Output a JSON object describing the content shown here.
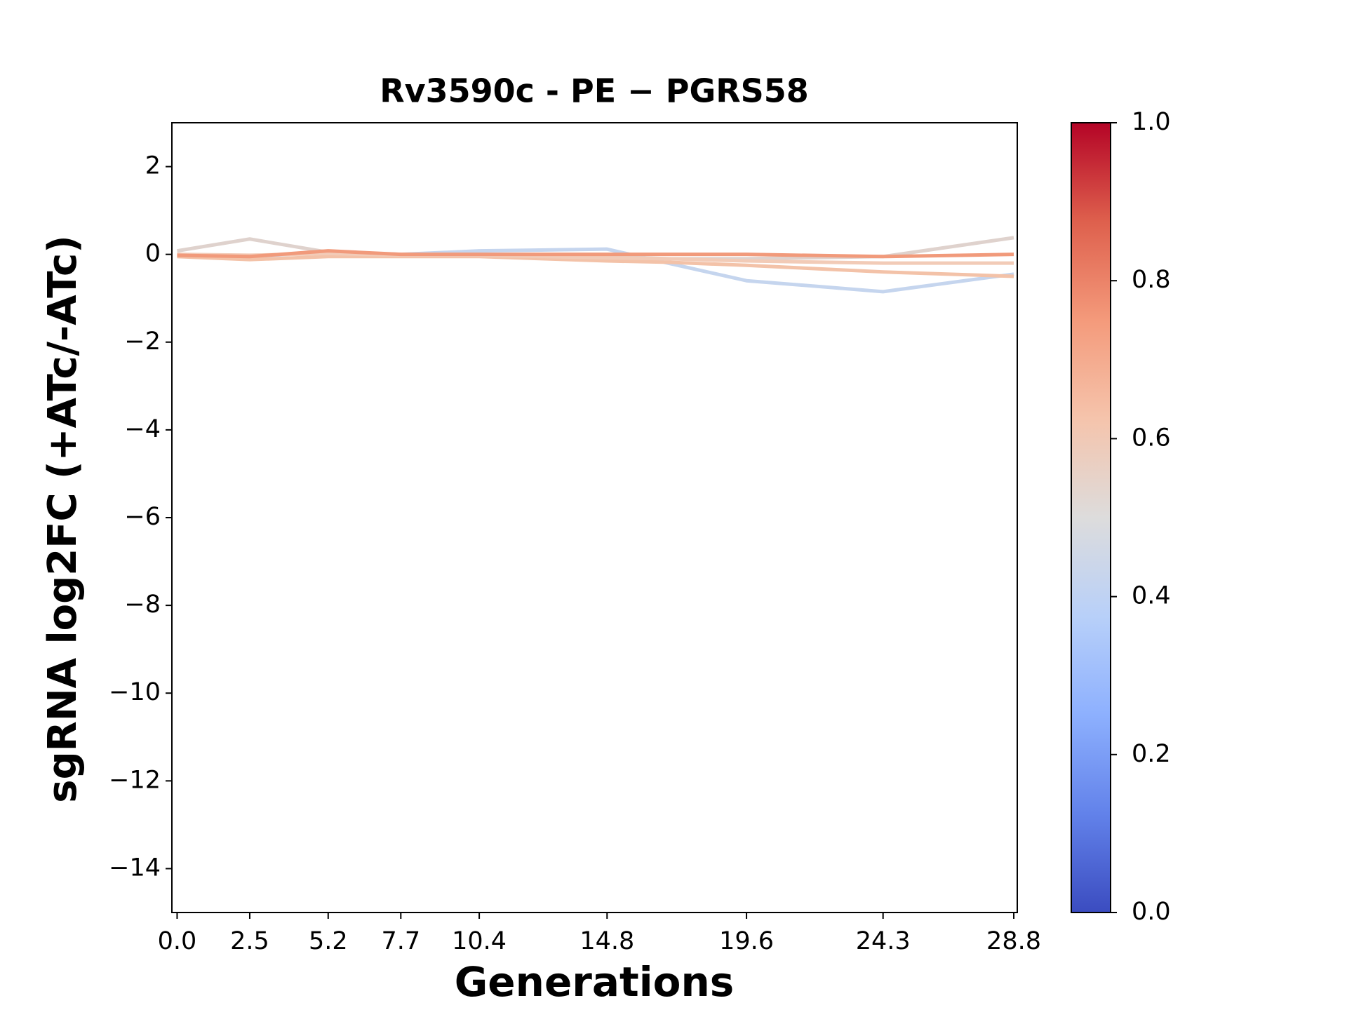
{
  "chart_data": {
    "type": "line",
    "title": "Rv3590c - PE − PGRS58",
    "x_label": "Generations",
    "y_label": "sgRNA log2FC (+ATc/-ATc)",
    "x": [
      0,
      2.5,
      5.2,
      7.7,
      10.4,
      14.8,
      16.9,
      19.6,
      24.3,
      28.8
    ],
    "xlim": [
      -0.18,
      28.92
    ],
    "xticks": [
      {
        "value": 0,
        "label": "0.0"
      },
      2.5,
      5.2,
      7.7,
      10.4,
      14.8,
      19.6,
      24.3,
      28.8
    ],
    "ylim": [
      -15,
      3
    ],
    "yticks": [
      {
        "value": 2,
        "label": "2"
      },
      {
        "value": 0,
        "label": "0"
      },
      {
        "value": -2,
        "label": "−2"
      },
      {
        "value": -4,
        "label": "−4"
      },
      {
        "value": -6,
        "label": "−6"
      },
      {
        "value": -8,
        "label": "−8"
      },
      {
        "value": -10,
        "label": "−10"
      },
      {
        "value": -12,
        "label": "−12"
      },
      {
        "value": -14,
        "label": "−14"
      }
    ],
    "grid": false,
    "series": [
      {
        "color": "#c5d5ee",
        "values": [
          0.0,
          -0.05,
          0.05,
          0.0,
          0.08,
          0.12,
          -0.2,
          -0.6,
          -0.85,
          -0.45
        ]
      },
      {
        "color": "#dfd2cd",
        "values": [
          0.08,
          0.35,
          0.05,
          0.0,
          0.0,
          -0.05,
          -0.1,
          -0.1,
          -0.05,
          0.38
        ]
      },
      {
        "color": "#f3c2a8",
        "values": [
          -0.05,
          -0.12,
          -0.05,
          -0.05,
          -0.05,
          -0.15,
          -0.18,
          -0.25,
          -0.4,
          -0.5
        ]
      },
      {
        "color": "#f2cbb7",
        "values": [
          0.0,
          -0.02,
          0.02,
          -0.02,
          -0.02,
          -0.08,
          -0.1,
          -0.15,
          -0.2,
          -0.2
        ]
      },
      {
        "color": "#f19a7b",
        "values": [
          -0.02,
          -0.05,
          0.08,
          0.0,
          0.0,
          0.0,
          0.0,
          0.0,
          -0.05,
          0.0
        ]
      }
    ],
    "colorbar": {
      "lim": [
        0,
        1
      ],
      "ticks": [
        {
          "value": 0,
          "label": "0.0"
        },
        0.2,
        0.4,
        0.6,
        0.8,
        {
          "value": 1,
          "label": "1.0"
        }
      ],
      "colors": [
        "#3b4cc0",
        "#6282ea",
        "#8db0fe",
        "#b8d0f9",
        "#dddcdc",
        "#f5c4ac",
        "#f49a7b",
        "#de604d",
        "#b40426"
      ]
    }
  }
}
